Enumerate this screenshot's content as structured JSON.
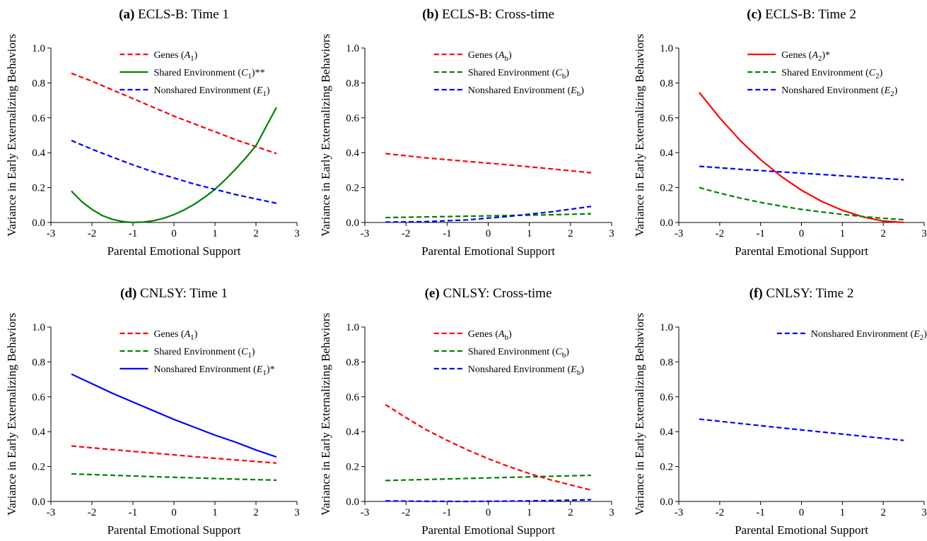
{
  "chart_data": [
    {
      "type": "line",
      "title_letter": "(a)",
      "title_text": " ECLS-B: Time 1",
      "xlabel": "Parental Emotional Support",
      "ylabel": "Variance in Early Externalizing Behaviors",
      "xlim": [
        -3,
        3
      ],
      "ylim": [
        0,
        1
      ],
      "xticks": [
        -3,
        -2,
        -1,
        0,
        1,
        2,
        3
      ],
      "yticks": [
        "0.0",
        "0.2",
        "0.4",
        "0.6",
        "0.8",
        "1.0"
      ],
      "legend_position": "top-center",
      "series": [
        {
          "name": "Genes (A1)",
          "name_parts": [
            "Genes (",
            "A",
            "1",
            ")"
          ],
          "color": "#ff0000",
          "dash": true,
          "x": [
            -2.5,
            -2,
            -1.5,
            -1,
            -0.5,
            0,
            0.5,
            1,
            1.5,
            2,
            2.5
          ],
          "y": [
            0.855,
            0.81,
            0.76,
            0.71,
            0.66,
            0.61,
            0.565,
            0.52,
            0.475,
            0.435,
            0.395
          ]
        },
        {
          "name": "Shared Environment (C1)**",
          "name_parts": [
            "Shared Environment (",
            "C",
            "1",
            ")**"
          ],
          "color": "#008000",
          "dash": false,
          "x": [
            -2.5,
            -2.25,
            -2,
            -1.75,
            -1.5,
            -1.25,
            -1,
            -0.75,
            -0.5,
            -0.25,
            0,
            0.25,
            0.5,
            0.75,
            1,
            1.25,
            1.5,
            1.75,
            2,
            2.25,
            2.5
          ],
          "y": [
            0.18,
            0.12,
            0.075,
            0.04,
            0.018,
            0.005,
            0.0,
            0.002,
            0.01,
            0.024,
            0.045,
            0.072,
            0.105,
            0.145,
            0.19,
            0.245,
            0.305,
            0.37,
            0.44,
            0.55,
            0.66
          ]
        },
        {
          "name": "Nonshared Environment (E1)",
          "name_parts": [
            "Nonshared Environment (",
            "E",
            "1",
            ")"
          ],
          "color": "#0000ff",
          "dash": true,
          "x": [
            -2.5,
            -2,
            -1.5,
            -1,
            -0.5,
            0,
            0.5,
            1,
            1.5,
            2,
            2.5
          ],
          "y": [
            0.47,
            0.42,
            0.375,
            0.33,
            0.29,
            0.255,
            0.22,
            0.19,
            0.16,
            0.135,
            0.11
          ]
        }
      ]
    },
    {
      "type": "line",
      "title_letter": "(b)",
      "title_text": " ECLS-B: Cross-time",
      "xlabel": "Parental Emotional Support",
      "ylabel": "Variance in Early Externalizing Behaviors",
      "xlim": [
        -3,
        3
      ],
      "ylim": [
        0,
        1
      ],
      "xticks": [
        -3,
        -2,
        -1,
        0,
        1,
        2,
        3
      ],
      "yticks": [
        "0.0",
        "0.2",
        "0.4",
        "0.6",
        "0.8",
        "1.0"
      ],
      "legend_position": "top-center",
      "series": [
        {
          "name": "Genes (Ab)",
          "name_parts": [
            "Genes (",
            "A",
            "b",
            ")"
          ],
          "color": "#ff0000",
          "dash": true,
          "x": [
            -2.5,
            -1.5,
            -0.5,
            0.5,
            1.5,
            2.5
          ],
          "y": [
            0.395,
            0.37,
            0.35,
            0.33,
            0.308,
            0.285
          ]
        },
        {
          "name": "Shared Environment (Cb)",
          "name_parts": [
            "Shared Environment (",
            "C",
            "b",
            ")"
          ],
          "color": "#008000",
          "dash": true,
          "x": [
            -2.5,
            -1.5,
            -0.5,
            0.5,
            1.5,
            2.5
          ],
          "y": [
            0.028,
            0.032,
            0.036,
            0.04,
            0.044,
            0.05
          ]
        },
        {
          "name": "Nonshared Environment (Eb)",
          "name_parts": [
            "Nonshared Environment (",
            "E",
            "b",
            ")"
          ],
          "color": "#0000ff",
          "dash": true,
          "x": [
            -2.5,
            -1.5,
            -0.5,
            0.5,
            1.5,
            2.5
          ],
          "y": [
            0.002,
            0.005,
            0.015,
            0.035,
            0.06,
            0.092
          ]
        }
      ]
    },
    {
      "type": "line",
      "title_letter": "(c)",
      "title_text": " ECLS-B: Time 2",
      "xlabel": "Parental Emotional Support",
      "ylabel": "Variance in Early Externalizing Behaviors",
      "xlim": [
        -3,
        3
      ],
      "ylim": [
        0,
        1
      ],
      "xticks": [
        -3,
        -2,
        -1,
        0,
        1,
        2,
        3
      ],
      "yticks": [
        "0.0",
        "0.2",
        "0.4",
        "0.6",
        "0.8",
        "1.0"
      ],
      "legend_position": "top-center",
      "series": [
        {
          "name": "Genes (A2)*",
          "name_parts": [
            "Genes (",
            "A",
            "2",
            ")*"
          ],
          "color": "#ff0000",
          "dash": false,
          "x": [
            -2.5,
            -2,
            -1.5,
            -1,
            -0.5,
            0,
            0.5,
            1,
            1.5,
            2,
            2.5
          ],
          "y": [
            0.745,
            0.6,
            0.47,
            0.36,
            0.265,
            0.185,
            0.12,
            0.07,
            0.032,
            0.008,
            0.0
          ]
        },
        {
          "name": "Shared Environment (C2)",
          "name_parts": [
            "Shared Environment (",
            "C",
            "2",
            ")"
          ],
          "color": "#008000",
          "dash": true,
          "x": [
            -2.5,
            -2,
            -1.5,
            -1,
            -0.5,
            0,
            0.5,
            1,
            1.5,
            2,
            2.5
          ],
          "y": [
            0.2,
            0.168,
            0.14,
            0.115,
            0.094,
            0.075,
            0.06,
            0.046,
            0.034,
            0.024,
            0.016
          ]
        },
        {
          "name": "Nonshared Environment (E2)",
          "name_parts": [
            "Nonshared Environment (",
            "E",
            "2",
            ")"
          ],
          "color": "#0000ff",
          "dash": true,
          "x": [
            -2.5,
            -1.5,
            -0.5,
            0.5,
            1.5,
            2.5
          ],
          "y": [
            0.322,
            0.305,
            0.29,
            0.275,
            0.26,
            0.245
          ]
        }
      ]
    },
    {
      "type": "line",
      "title_letter": "(d)",
      "title_text": " CNLSY: Time 1",
      "xlabel": "Parental Emotional Support",
      "ylabel": "Variance in Early Externalizing Behaviors",
      "xlim": [
        -3,
        3
      ],
      "ylim": [
        0,
        1
      ],
      "xticks": [
        -3,
        -2,
        -1,
        0,
        1,
        2,
        3
      ],
      "yticks": [
        "0.0",
        "0.2",
        "0.4",
        "0.6",
        "0.8",
        "1.0"
      ],
      "legend_position": "top-center",
      "series": [
        {
          "name": "Genes (A1)",
          "name_parts": [
            "Genes (",
            "A",
            "1",
            ")"
          ],
          "color": "#ff0000",
          "dash": true,
          "x": [
            -2.5,
            -1.5,
            -0.5,
            0.5,
            1.5,
            2.5
          ],
          "y": [
            0.318,
            0.297,
            0.277,
            0.257,
            0.238,
            0.22
          ]
        },
        {
          "name": "Shared Environment (C1)",
          "name_parts": [
            "Shared Environment (",
            "C",
            "1",
            ")"
          ],
          "color": "#008000",
          "dash": true,
          "x": [
            -2.5,
            -1.5,
            -0.5,
            0.5,
            1.5,
            2.5
          ],
          "y": [
            0.158,
            0.15,
            0.142,
            0.135,
            0.128,
            0.122
          ]
        },
        {
          "name": "Nonshared Environment (E1)*",
          "name_parts": [
            "Nonshared Environment (",
            "E",
            "1",
            ")*"
          ],
          "color": "#0000ff",
          "dash": false,
          "x": [
            -2.5,
            -2,
            -1.5,
            -1,
            -0.5,
            0,
            0.5,
            1,
            1.5,
            2,
            2.5
          ],
          "y": [
            0.73,
            0.675,
            0.62,
            0.57,
            0.52,
            0.47,
            0.425,
            0.38,
            0.34,
            0.295,
            0.255
          ]
        }
      ]
    },
    {
      "type": "line",
      "title_letter": "(e)",
      "title_text": " CNLSY: Cross-time",
      "xlabel": "Parental Emotional Support",
      "ylabel": "Variance in Early Externalizing Behaviors",
      "xlim": [
        -3,
        3
      ],
      "ylim": [
        0,
        1
      ],
      "xticks": [
        -3,
        -2,
        -1,
        0,
        1,
        2,
        3
      ],
      "yticks": [
        "0.0",
        "0.2",
        "0.4",
        "0.6",
        "0.8",
        "1.0"
      ],
      "legend_position": "top-center",
      "series": [
        {
          "name": "Genes (Ab)",
          "name_parts": [
            "Genes (",
            "A",
            "b",
            ")"
          ],
          "color": "#ff0000",
          "dash": true,
          "x": [
            -2.5,
            -2,
            -1.5,
            -1,
            -0.5,
            0,
            0.5,
            1,
            1.5,
            2,
            2.5
          ],
          "y": [
            0.555,
            0.48,
            0.41,
            0.35,
            0.295,
            0.245,
            0.2,
            0.16,
            0.125,
            0.095,
            0.065
          ]
        },
        {
          "name": "Shared Environment (Cb)",
          "name_parts": [
            "Shared Environment (",
            "C",
            "b",
            ")"
          ],
          "color": "#008000",
          "dash": true,
          "x": [
            -2.5,
            -1.5,
            -0.5,
            0.5,
            1.5,
            2.5
          ],
          "y": [
            0.12,
            0.126,
            0.132,
            0.138,
            0.144,
            0.15
          ]
        },
        {
          "name": "Nonshared Environment (Eb)",
          "name_parts": [
            "Nonshared Environment (",
            "E",
            "b",
            ")"
          ],
          "color": "#0000ff",
          "dash": true,
          "x": [
            -2.5,
            -1.5,
            -0.5,
            0.5,
            1.5,
            2.5
          ],
          "y": [
            0.003,
            0.001,
            0.0,
            0.002,
            0.005,
            0.01
          ]
        }
      ]
    },
    {
      "type": "line",
      "title_letter": "(f)",
      "title_text": " CNLSY: Time 2",
      "xlabel": "Parental Emotional Support",
      "ylabel": "Variance in Early Externalizing Behaviors",
      "xlim": [
        -3,
        3
      ],
      "ylim": [
        0,
        1
      ],
      "xticks": [
        -3,
        -2,
        -1,
        0,
        1,
        2,
        3
      ],
      "yticks": [
        "0.0",
        "0.2",
        "0.4",
        "0.6",
        "0.8",
        "1.0"
      ],
      "legend_position": "top-right",
      "series": [
        {
          "name": "Nonshared Environment (E2)",
          "name_parts": [
            "Nonshared Environment (",
            "E",
            "2",
            ")"
          ],
          "color": "#0000ff",
          "dash": true,
          "x": [
            -2.5,
            -1.5,
            -0.5,
            0.5,
            1.5,
            2.5
          ],
          "y": [
            0.472,
            0.447,
            0.422,
            0.398,
            0.374,
            0.35
          ]
        }
      ]
    }
  ]
}
